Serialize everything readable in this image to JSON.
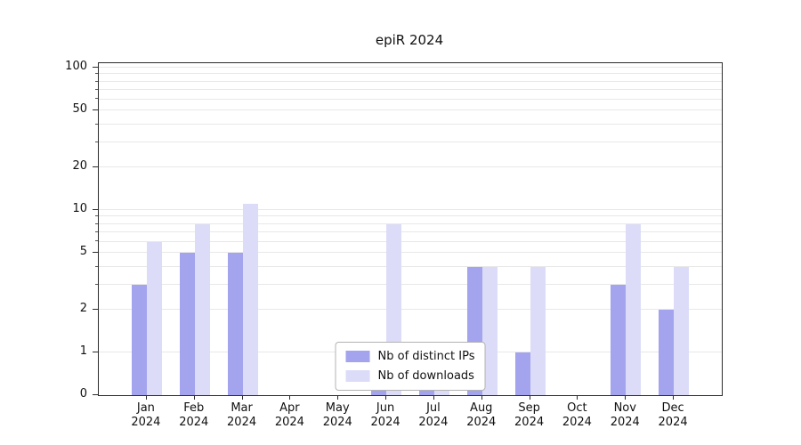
{
  "title": "epiR 2024",
  "chart_data": {
    "type": "bar",
    "title": "epiR 2024",
    "categories": [
      "Jan 2024",
      "Feb 2024",
      "Mar 2024",
      "Apr 2024",
      "May 2024",
      "Jun 2024",
      "Jul 2024",
      "Aug 2024",
      "Sep 2024",
      "Oct 2024",
      "Nov 2024",
      "Dec 2024"
    ],
    "series": [
      {
        "name": "Nb of distinct IPs",
        "color": "#a3a3ee",
        "values": [
          3,
          5,
          5,
          0,
          0,
          1,
          1,
          4,
          1,
          0,
          3,
          2
        ]
      },
      {
        "name": "Nb of downloads",
        "color": "#dcdcf8",
        "values": [
          6,
          8,
          11,
          0,
          0,
          8,
          1,
          4,
          4,
          0,
          8,
          4
        ]
      }
    ],
    "xlabel": "",
    "ylabel": "",
    "yscale": "symlog",
    "ylim": [
      0,
      100
    ],
    "yticks": [
      0,
      1,
      2,
      5,
      10,
      20,
      50,
      100
    ],
    "gridline_values": [
      1,
      2,
      3,
      4,
      5,
      6,
      7,
      8,
      9,
      10,
      20,
      30,
      40,
      50,
      60,
      70,
      80,
      90,
      100
    ],
    "grid": true,
    "legend_position": "lower center",
    "legend_labels": [
      "Nb of distinct IPs",
      "Nb of downloads"
    ]
  }
}
